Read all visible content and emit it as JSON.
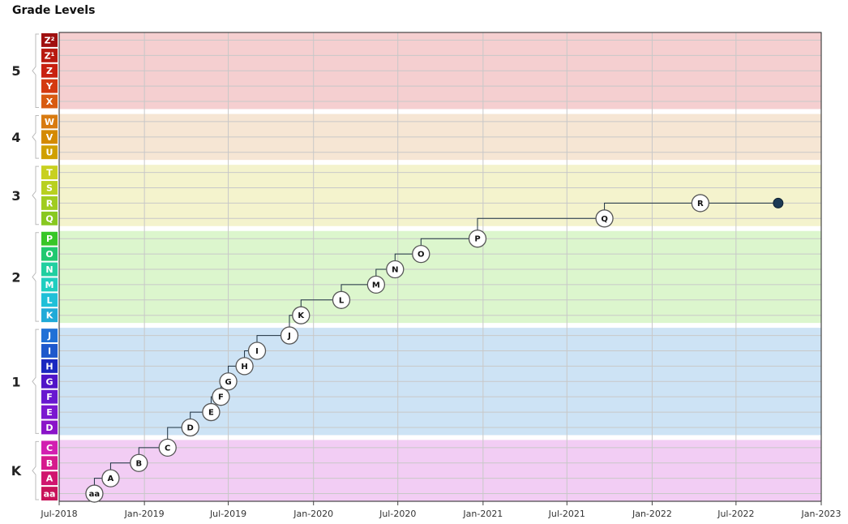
{
  "chart_data": {
    "type": "line",
    "title": "Grade Levels",
    "x_axis": {
      "ticks": [
        "Jul-2018",
        "Jan-2019",
        "Jul-2019",
        "Jan-2020",
        "Jul-2020",
        "Jan-2021",
        "Jul-2021",
        "Jan-2022",
        "Jul-2022",
        "Jan-2023"
      ],
      "range": [
        "2018-07",
        "2023-01"
      ]
    },
    "y_axis": {
      "levels": [
        "aa",
        "A",
        "B",
        "C",
        "D",
        "E",
        "F",
        "G",
        "H",
        "I",
        "J",
        "K",
        "L",
        "M",
        "N",
        "O",
        "P",
        "Q",
        "R",
        "S",
        "T",
        "U",
        "V",
        "W",
        "X",
        "Y",
        "Z",
        "Z¹",
        "Z²"
      ]
    },
    "grades": [
      {
        "name": "K",
        "levels": [
          "aa",
          "A",
          "B",
          "C"
        ],
        "color": "#f2cdf4"
      },
      {
        "name": "1",
        "levels": [
          "D",
          "E",
          "F",
          "G",
          "H",
          "I",
          "J"
        ],
        "color": "#cde3f5"
      },
      {
        "name": "2",
        "levels": [
          "K",
          "L",
          "M",
          "N",
          "O",
          "P"
        ],
        "color": "#dcf6cd"
      },
      {
        "name": "3",
        "levels": [
          "Q",
          "R",
          "S",
          "T"
        ],
        "color": "#f4f3cd"
      },
      {
        "name": "4",
        "levels": [
          "U",
          "V",
          "W"
        ],
        "color": "#f6e6d4"
      },
      {
        "name": "5",
        "levels": [
          "X",
          "Y",
          "Z",
          "Z¹",
          "Z²"
        ],
        "color": "#f5cfd0"
      }
    ],
    "level_colors": {
      "aa": "#c8145a",
      "A": "#d0166e",
      "B": "#d61a8c",
      "C": "#d21eb0",
      "D": "#8a14c8",
      "E": "#7a18d0",
      "F": "#6818d0",
      "G": "#5014c8",
      "H": "#1a28c0",
      "I": "#1e58cc",
      "J": "#2070d6",
      "K": "#20aad8",
      "L": "#20c0d8",
      "M": "#20cec0",
      "N": "#20cfa0",
      "O": "#20c870",
      "P": "#38c628",
      "Q": "#88c820",
      "R": "#a0cc20",
      "S": "#b8d020",
      "T": "#c8d020",
      "U": "#d0a000",
      "V": "#d48a00",
      "W": "#d87a10",
      "X": "#d85a10",
      "Y": "#d43a10",
      "Z": "#c82010",
      "Z¹": "#b81a10",
      "Z²": "#a01010"
    },
    "series": [
      {
        "points": [
          {
            "date": "2018-09-15",
            "level": "aa"
          },
          {
            "date": "2018-10-20",
            "level": "A"
          },
          {
            "date": "2018-12-20",
            "level": "B"
          },
          {
            "date": "2019-02-20",
            "level": "C"
          },
          {
            "date": "2019-04-10",
            "level": "D"
          },
          {
            "date": "2019-05-25",
            "level": "E"
          },
          {
            "date": "2019-06-15",
            "level": "F"
          },
          {
            "date": "2019-07-01",
            "level": "G"
          },
          {
            "date": "2019-08-05",
            "level": "H"
          },
          {
            "date": "2019-09-01",
            "level": "I"
          },
          {
            "date": "2019-11-10",
            "level": "J"
          },
          {
            "date": "2019-12-05",
            "level": "K"
          },
          {
            "date": "2020-03-01",
            "level": "L"
          },
          {
            "date": "2020-05-15",
            "level": "M"
          },
          {
            "date": "2020-06-25",
            "level": "N"
          },
          {
            "date": "2020-08-20",
            "level": "O"
          },
          {
            "date": "2020-12-20",
            "level": "P"
          },
          {
            "date": "2021-09-20",
            "level": "Q"
          },
          {
            "date": "2022-04-15",
            "level": "R"
          },
          {
            "date": "2022-09-30",
            "level": "R",
            "marker": "current"
          }
        ],
        "line_color": "#1c3040"
      }
    ],
    "grid": true
  }
}
